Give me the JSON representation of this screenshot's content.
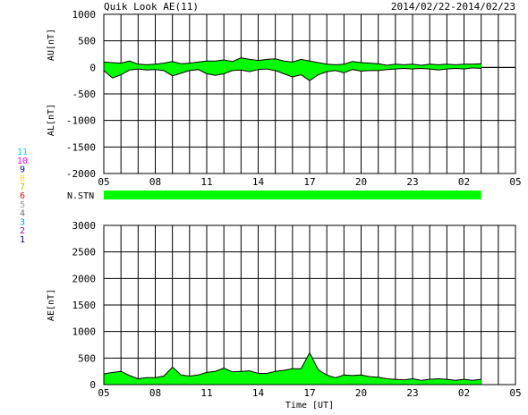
{
  "header": {
    "title": "Quik Look AE(11)",
    "date_range": "2014/02/22-2014/02/23"
  },
  "colors": {
    "fill": "#00ff00",
    "trace": "#000000",
    "grid": "#000000",
    "background": "#ffffff"
  },
  "station_legend": [
    {
      "label": "11",
      "color": "#00d8ff"
    },
    {
      "label": "10",
      "color": "#ff00ff"
    },
    {
      "label": "9",
      "color": "#0000c8"
    },
    {
      "label": "8",
      "color": "#ffe000"
    },
    {
      "label": "7",
      "color": "#b4c800"
    },
    {
      "label": "6",
      "color": "#ff0000"
    },
    {
      "label": "5",
      "color": "#9a9a9a"
    },
    {
      "label": "4",
      "color": "#6e6e6e"
    },
    {
      "label": "3",
      "color": "#009bd8"
    },
    {
      "label": "2",
      "color": "#a000c8"
    },
    {
      "label": "1",
      "color": "#0000a0"
    }
  ],
  "station_panel": {
    "label": "N.STN",
    "coverage_hours": [
      5,
      27
    ]
  },
  "chart_data": [
    {
      "type": "area",
      "name": "AU/AL panel",
      "ylabel_upper": "AU[nT]",
      "ylabel_lower": "AL[nT]",
      "xlim": [
        5,
        29
      ],
      "ylim": [
        -2000,
        1000
      ],
      "yticks": [
        1000,
        500,
        0,
        -500,
        -1000,
        -1500,
        -2000
      ],
      "xtick_labels": [
        "05",
        "08",
        "11",
        "14",
        "17",
        "20",
        "23",
        "02",
        "05"
      ],
      "grid": true,
      "x": [
        5.0,
        5.5,
        6.0,
        6.5,
        7.0,
        7.5,
        8.0,
        8.5,
        9.0,
        9.5,
        10.0,
        10.5,
        11.0,
        11.5,
        12.0,
        12.5,
        13.0,
        13.5,
        14.0,
        14.5,
        15.0,
        15.5,
        16.0,
        16.5,
        17.0,
        17.5,
        18.0,
        18.5,
        19.0,
        19.5,
        20.0,
        20.5,
        21.0,
        21.5,
        22.0,
        22.5,
        23.0,
        23.5,
        24.0,
        24.5,
        25.0,
        25.5,
        26.0,
        26.5,
        27.0
      ],
      "series": [
        {
          "values": [
            100,
            90,
            80,
            120,
            60,
            50,
            60,
            80,
            110,
            70,
            80,
            100,
            120,
            120,
            140,
            110,
            180,
            150,
            130,
            150,
            160,
            120,
            100,
            150,
            120,
            90,
            60,
            50,
            60,
            110,
            90,
            80,
            70,
            40,
            60,
            50,
            60,
            40,
            60,
            50,
            60,
            50,
            60,
            60,
            70
          ]
        },
        {
          "values": [
            -60,
            -200,
            -140,
            -50,
            -30,
            -50,
            -40,
            -60,
            -160,
            -110,
            -60,
            -40,
            -120,
            -150,
            -120,
            -60,
            -50,
            -80,
            -40,
            -30,
            -60,
            -120,
            -180,
            -140,
            -250,
            -140,
            -80,
            -60,
            -100,
            -40,
            -70,
            -60,
            -60,
            -40,
            -30,
            -20,
            -30,
            -20,
            -30,
            -50,
            -30,
            -20,
            -30,
            -10,
            -20
          ]
        }
      ]
    },
    {
      "type": "area",
      "name": "AE panel",
      "ylabel": "AE[nT]",
      "xlabel": "Time [UT]",
      "xlim": [
        5,
        29
      ],
      "ylim": [
        0,
        3000
      ],
      "yticks": [
        3000,
        2500,
        2000,
        1500,
        1000,
        500,
        0
      ],
      "xtick_labels": [
        "05",
        "08",
        "11",
        "14",
        "17",
        "20",
        "23",
        "02",
        "05"
      ],
      "grid": true,
      "x": [
        5.0,
        5.5,
        6.0,
        6.5,
        7.0,
        7.5,
        8.0,
        8.5,
        9.0,
        9.5,
        10.0,
        10.5,
        11.0,
        11.5,
        12.0,
        12.5,
        13.0,
        13.5,
        14.0,
        14.5,
        15.0,
        15.5,
        16.0,
        16.5,
        17.0,
        17.5,
        18.0,
        18.5,
        19.0,
        19.5,
        20.0,
        20.5,
        21.0,
        21.5,
        22.0,
        22.5,
        23.0,
        23.5,
        24.0,
        24.5,
        25.0,
        25.5,
        26.0,
        26.5,
        27.0
      ],
      "series": [
        {
          "values": [
            200,
            230,
            250,
            170,
            110,
            130,
            130,
            160,
            330,
            180,
            160,
            180,
            230,
            250,
            310,
            240,
            250,
            260,
            210,
            210,
            250,
            270,
            300,
            300,
            600,
            280,
            180,
            130,
            180,
            170,
            180,
            150,
            140,
            110,
            100,
            90,
            110,
            80,
            100,
            110,
            100,
            80,
            100,
            80,
            100
          ]
        }
      ]
    }
  ]
}
